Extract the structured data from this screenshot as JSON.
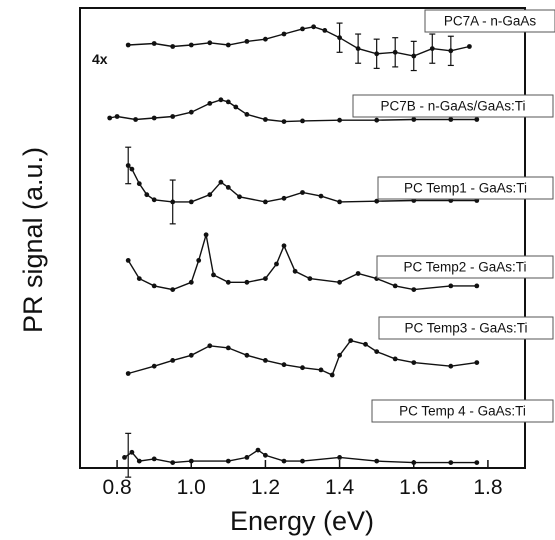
{
  "chart_data": {
    "type": "line",
    "title": "",
    "xlabel": "Energy (eV)",
    "ylabel": "PR signal (a.u.)",
    "xlim": [
      0.7,
      1.9
    ],
    "xticks": [
      "0.8",
      "1.0",
      "1.2",
      "1.4",
      "1.6",
      "1.8"
    ],
    "x_tick_values": [
      0.8,
      1.0,
      1.2,
      1.4,
      1.6,
      1.8
    ],
    "yticks": [],
    "grid": false,
    "series": [
      {
        "name": "PC7A - n-GaAs",
        "annotation": "4x",
        "offset": 6.0,
        "x": [
          0.83,
          0.9,
          0.95,
          1.0,
          1.05,
          1.1,
          1.15,
          1.2,
          1.25,
          1.3,
          1.33,
          1.36,
          1.4,
          1.45,
          1.5,
          1.55,
          1.6,
          1.65,
          1.7,
          1.75
        ],
        "y": [
          0.0,
          0.02,
          -0.02,
          0.0,
          0.03,
          0.0,
          0.05,
          0.08,
          0.15,
          0.22,
          0.25,
          0.2,
          0.1,
          -0.05,
          -0.12,
          -0.1,
          -0.15,
          -0.05,
          -0.08,
          -0.02
        ]
      },
      {
        "name": "PC7B - n-GaAs/GaAs:Ti",
        "offset": 5.0,
        "x": [
          0.78,
          0.8,
          0.85,
          0.9,
          0.95,
          1.0,
          1.05,
          1.08,
          1.1,
          1.12,
          1.15,
          1.2,
          1.25,
          1.3,
          1.4,
          1.5,
          1.6,
          1.7,
          1.77
        ],
        "y": [
          0.0,
          0.02,
          -0.02,
          0.0,
          0.02,
          0.08,
          0.2,
          0.25,
          0.22,
          0.15,
          0.05,
          -0.02,
          -0.05,
          -0.04,
          -0.03,
          -0.03,
          -0.02,
          -0.02,
          -0.02
        ]
      },
      {
        "name": "PC Temp1 - GaAs:Ti",
        "offset": 3.9,
        "x": [
          0.83,
          0.84,
          0.86,
          0.88,
          0.9,
          0.95,
          1.0,
          1.05,
          1.08,
          1.1,
          1.13,
          1.2,
          1.25,
          1.3,
          1.35,
          1.4,
          1.5,
          1.6,
          1.7,
          1.77
        ],
        "y": [
          0.45,
          0.4,
          0.2,
          0.05,
          -0.02,
          -0.05,
          -0.05,
          0.05,
          0.22,
          0.15,
          0.02,
          -0.05,
          0.0,
          0.08,
          0.03,
          -0.05,
          -0.04,
          -0.03,
          -0.03,
          -0.03
        ]
      },
      {
        "name": "PC Temp2 - GaAs:Ti",
        "offset": 2.75,
        "x": [
          0.83,
          0.86,
          0.9,
          0.95,
          1.0,
          1.02,
          1.04,
          1.06,
          1.1,
          1.15,
          1.2,
          1.23,
          1.25,
          1.28,
          1.32,
          1.4,
          1.45,
          1.5,
          1.55,
          1.6,
          1.7,
          1.77
        ],
        "y": [
          0.3,
          0.05,
          -0.05,
          -0.1,
          0.0,
          0.3,
          0.65,
          0.1,
          0.0,
          0.0,
          0.05,
          0.25,
          0.5,
          0.15,
          0.05,
          0.0,
          0.12,
          0.05,
          -0.05,
          -0.1,
          -0.05,
          -0.05
        ]
      },
      {
        "name": "PC Temp3 - GaAs:Ti",
        "offset": 1.6,
        "x": [
          0.83,
          0.9,
          0.95,
          1.0,
          1.05,
          1.1,
          1.15,
          1.2,
          1.25,
          1.3,
          1.35,
          1.38,
          1.4,
          1.43,
          1.47,
          1.5,
          1.55,
          1.6,
          1.7,
          1.77
        ],
        "y": [
          -0.1,
          0.0,
          0.08,
          0.15,
          0.28,
          0.25,
          0.15,
          0.08,
          0.02,
          -0.02,
          -0.05,
          -0.12,
          0.15,
          0.35,
          0.3,
          0.2,
          0.1,
          0.05,
          0.0,
          0.05
        ]
      },
      {
        "name": "PC Temp 4 - GaAs:Ti",
        "offset": 0.3,
        "x": [
          0.82,
          0.84,
          0.86,
          0.9,
          0.95,
          1.0,
          1.1,
          1.15,
          1.18,
          1.2,
          1.25,
          1.3,
          1.4,
          1.5,
          1.6,
          1.7,
          1.77
        ],
        "y": [
          0.05,
          0.12,
          0.0,
          0.03,
          -0.02,
          0.0,
          0.0,
          0.05,
          0.15,
          0.08,
          0.0,
          0.0,
          0.05,
          0.0,
          -0.02,
          -0.02,
          -0.02
        ]
      }
    ],
    "error_bars": [
      {
        "series": 0,
        "x": 1.4,
        "y": 0.1,
        "err": 0.2
      },
      {
        "series": 0,
        "x": 1.45,
        "y": -0.05,
        "err": 0.2
      },
      {
        "series": 0,
        "x": 1.5,
        "y": -0.12,
        "err": 0.2
      },
      {
        "series": 0,
        "x": 1.55,
        "y": -0.1,
        "err": 0.2
      },
      {
        "series": 0,
        "x": 1.6,
        "y": -0.15,
        "err": 0.2
      },
      {
        "series": 0,
        "x": 1.65,
        "y": -0.05,
        "err": 0.2
      },
      {
        "series": 0,
        "x": 1.7,
        "y": -0.08,
        "err": 0.2
      },
      {
        "series": 2,
        "x": 0.83,
        "y": 0.45,
        "err": 0.25
      },
      {
        "series": 2,
        "x": 0.95,
        "y": -0.05,
        "err": 0.3
      },
      {
        "series": 5,
        "x": 0.83,
        "y": 0.08,
        "err": 0.3
      }
    ]
  }
}
